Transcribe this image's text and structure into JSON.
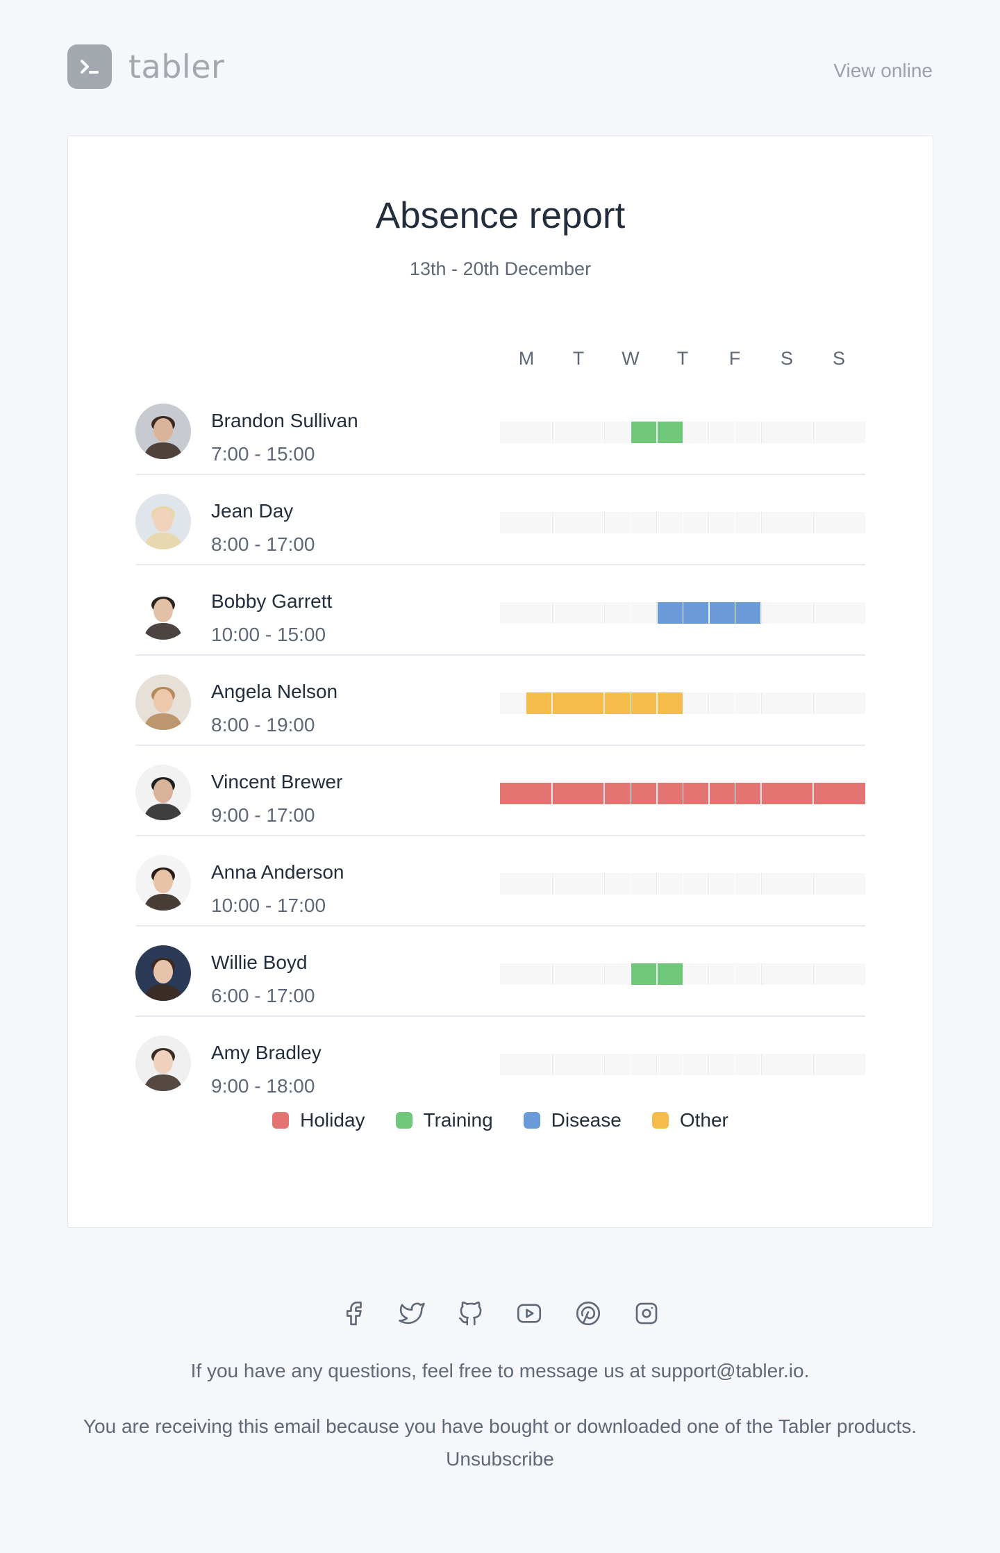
{
  "brand": {
    "name": "tabler",
    "icon": "terminal-prompt-icon"
  },
  "header": {
    "view_online": "View online"
  },
  "report": {
    "title": "Absence report",
    "period": "13th - 20th December",
    "days": [
      "M",
      "T",
      "W",
      "T",
      "F",
      "S",
      "S"
    ]
  },
  "colors": {
    "holiday": "#e37472",
    "training": "#6fc87a",
    "disease": "#6a9bd8",
    "other": "#f6bc4b",
    "empty": "#f7f7f8"
  },
  "people": [
    {
      "name": "Brandon Sullivan",
      "hours": "7:00 - 15:00",
      "avatar": "avatar-icon",
      "absence": [
        {
          "type": "training",
          "start": 2.5,
          "end": 3.5
        }
      ]
    },
    {
      "name": "Jean Day",
      "hours": "8:00 - 17:00",
      "avatar": "avatar-icon",
      "absence": []
    },
    {
      "name": "Bobby Garrett",
      "hours": "10:00 - 15:00",
      "avatar": "avatar-icon",
      "absence": [
        {
          "type": "disease",
          "start": 3,
          "end": 5
        }
      ]
    },
    {
      "name": "Angela Nelson",
      "hours": "8:00 - 19:00",
      "avatar": "avatar-icon",
      "absence": [
        {
          "type": "other",
          "start": 0.5,
          "end": 3.5
        }
      ]
    },
    {
      "name": "Vincent Brewer",
      "hours": "9:00 - 17:00",
      "avatar": "avatar-icon",
      "absence": [
        {
          "type": "holiday",
          "start": 0,
          "end": 7
        }
      ]
    },
    {
      "name": "Anna Anderson",
      "hours": "10:00 - 17:00",
      "avatar": "avatar-icon",
      "absence": []
    },
    {
      "name": "Willie Boyd",
      "hours": "6:00 - 17:00",
      "avatar": "avatar-icon",
      "absence": [
        {
          "type": "training",
          "start": 2.5,
          "end": 3.5
        }
      ]
    },
    {
      "name": "Amy Bradley",
      "hours": "9:00 - 18:00",
      "avatar": "avatar-icon",
      "absence": []
    }
  ],
  "legend": [
    {
      "key": "holiday",
      "label": "Holiday"
    },
    {
      "key": "training",
      "label": "Training"
    },
    {
      "key": "disease",
      "label": "Disease"
    },
    {
      "key": "other",
      "label": "Other"
    }
  ],
  "footer": {
    "social_icons": [
      "facebook-icon",
      "twitter-icon",
      "github-icon",
      "youtube-icon",
      "pinterest-icon",
      "instagram-icon"
    ],
    "contact": "If you have any questions, feel free to message us at support@tabler.io.",
    "reason": "You are receiving this email because you have bought or downloaded one of the Tabler products.",
    "unsubscribe": "Unsubscribe"
  }
}
